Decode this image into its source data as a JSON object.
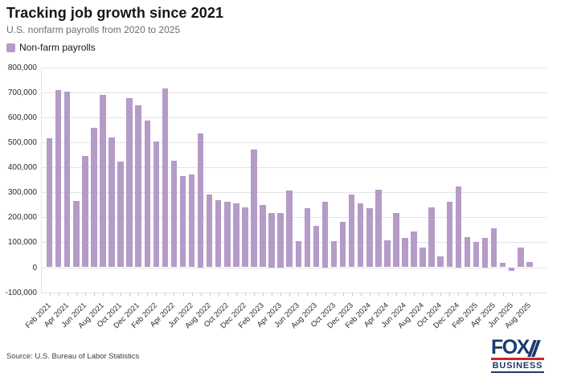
{
  "header": {
    "title": "Tracking job growth since 2021",
    "subtitle": "U.S. nonfarm payrolls from 2020 to 2025"
  },
  "legend": {
    "label": "Non-farm payrolls"
  },
  "footer": {
    "source": "Source: U.S. Bureau of Labor Statistics",
    "logo_line1": "FOX",
    "logo_line2": "BUSINESS"
  },
  "colors": {
    "bar": "#b59bc8",
    "grid": "#e4e4e4",
    "tick": "#c9c9c9",
    "logo_navy": "#1d3a6d",
    "logo_red": "#c9252d"
  },
  "chart_data": {
    "type": "bar",
    "title": "Tracking job growth since 2021",
    "subtitle": "U.S. nonfarm payrolls from 2020 to 2025",
    "series_name": "Non-farm payrolls",
    "x": [
      "Feb 2021",
      "Mar 2021",
      "Apr 2021",
      "May 2021",
      "Jun 2021",
      "Jul 2021",
      "Aug 2021",
      "Sep 2021",
      "Oct 2021",
      "Nov 2021",
      "Dec 2021",
      "Jan 2022",
      "Feb 2022",
      "Mar 2022",
      "Apr 2022",
      "May 2022",
      "Jun 2022",
      "Jul 2022",
      "Aug 2022",
      "Sep 2022",
      "Oct 2022",
      "Nov 2022",
      "Dec 2022",
      "Jan 2023",
      "Feb 2023",
      "Mar 2023",
      "Apr 2023",
      "May 2023",
      "Jun 2023",
      "Jul 2023",
      "Aug 2023",
      "Sep 2023",
      "Oct 2023",
      "Nov 2023",
      "Dec 2023",
      "Jan 2024",
      "Feb 2024",
      "Mar 2024",
      "Apr 2024",
      "May 2024",
      "Jun 2024",
      "Jul 2024",
      "Aug 2024",
      "Sep 2024",
      "Oct 2024",
      "Nov 2024",
      "Dec 2024",
      "Jan 2025",
      "Feb 2025",
      "Mar 2025",
      "Apr 2025",
      "May 2025",
      "Jun 2025",
      "Jul 2025",
      "Aug 2025"
    ],
    "values": [
      517000,
      708000,
      704000,
      264000,
      446000,
      557000,
      689000,
      518000,
      424000,
      676000,
      647000,
      588000,
      504000,
      714000,
      427000,
      364000,
      370000,
      537000,
      292000,
      269000,
      263000,
      256000,
      239000,
      472000,
      248000,
      217000,
      217000,
      306000,
      105000,
      236000,
      165000,
      262000,
      105000,
      182000,
      290000,
      256000,
      236000,
      310000,
      108000,
      216000,
      118000,
      144000,
      78000,
      240000,
      44000,
      261000,
      323000,
      120000,
      100000,
      119000,
      157000,
      19000,
      -13000,
      79000,
      22000
    ],
    "x_tick_labels": [
      "Feb 2021",
      "Apr 2021",
      "Jun 2021",
      "Aug 2021",
      "Oct 2021",
      "Dec 2021",
      "Feb 2022",
      "Apr 2022",
      "Jun 2022",
      "Aug 2022",
      "Oct 2022",
      "Dec 2022",
      "Feb 2023",
      "Apr 2023",
      "Jun 2023",
      "Aug 2023",
      "Oct 2023",
      "Dec 2023",
      "Feb 2024",
      "Apr 2024",
      "Jun 2024",
      "Aug 2024",
      "Oct 2024",
      "Dec 2024",
      "Feb 2025",
      "Apr 2025",
      "Jun 2025",
      "Aug 2025"
    ],
    "y_ticks": [
      800000,
      700000,
      600000,
      500000,
      400000,
      300000,
      200000,
      100000,
      0,
      -100000
    ],
    "y_tick_labels": [
      "800,000",
      "700,000",
      "600,000",
      "500,000",
      "400,000",
      "300,000",
      "200,000",
      "100,000",
      "0",
      "-100,000"
    ],
    "ylim": [
      -100000,
      800000
    ],
    "xlabel": "",
    "ylabel": "",
    "grid": true,
    "legend_position": "top-left"
  }
}
